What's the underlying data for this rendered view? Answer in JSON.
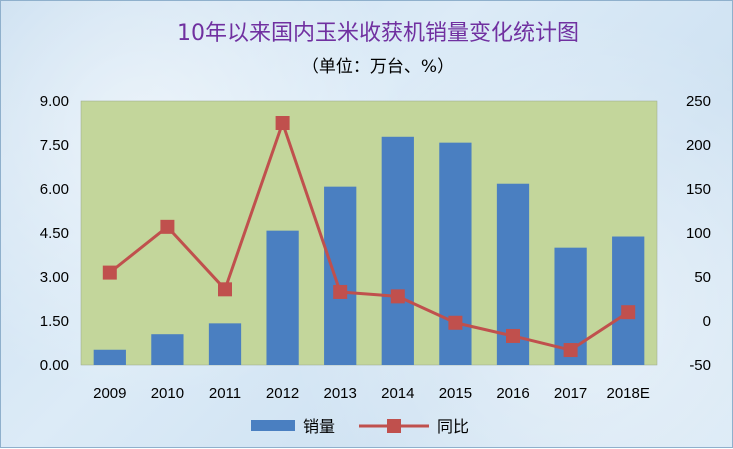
{
  "chart_data": {
    "type": "bar",
    "title": "10年以来国内玉米收获机销量变化统计图",
    "subtitle": "（单位：万台、%）",
    "categories": [
      "2009",
      "2010",
      "2011",
      "2012",
      "2013",
      "2014",
      "2015",
      "2016",
      "2017",
      "2018E"
    ],
    "series": [
      {
        "name": "销量",
        "type": "bar",
        "axis": "left",
        "color": "#4a7fc1",
        "values": [
          0.52,
          1.05,
          1.42,
          4.58,
          6.08,
          7.78,
          7.58,
          6.18,
          4.0,
          4.38
        ]
      },
      {
        "name": "同比",
        "type": "line",
        "axis": "right",
        "color": "#c0504d",
        "values": [
          55,
          107,
          36,
          225,
          33,
          28,
          -2,
          -17,
          -33,
          10
        ]
      }
    ],
    "y_left": {
      "min": 0,
      "max": 9,
      "ticks": [
        "0.00",
        "1.50",
        "3.00",
        "4.50",
        "6.00",
        "7.50",
        "9.00"
      ]
    },
    "y_right": {
      "min": -50,
      "max": 250,
      "ticks": [
        "-50",
        "0",
        "50",
        "100",
        "150",
        "200",
        "250"
      ]
    },
    "grid": false,
    "legend": "bottom",
    "plot_background": "#c3d69b"
  }
}
